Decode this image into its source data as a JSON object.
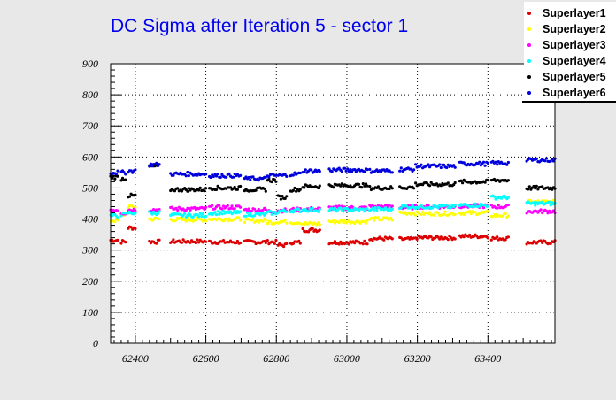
{
  "chart_data": {
    "type": "scatter",
    "title": "DC Sigma after Iteration 5 - sector 1",
    "xlabel": "",
    "ylabel": "",
    "xlim": [
      62330,
      63590
    ],
    "ylim": [
      0,
      900
    ],
    "xticks": [
      62400,
      62600,
      62800,
      63000,
      63200,
      63400
    ],
    "yticks": [
      0,
      100,
      200,
      300,
      400,
      500,
      600,
      700,
      800,
      900
    ],
    "grid": true,
    "legend": "top-right",
    "runs": [
      [
        62330,
        62350
      ],
      [
        62360,
        62375
      ],
      [
        62380,
        62400
      ],
      [
        62440,
        62470
      ],
      [
        62500,
        62600
      ],
      [
        62610,
        62700
      ],
      [
        62710,
        62770
      ],
      [
        62775,
        62800
      ],
      [
        62805,
        62830
      ],
      [
        62840,
        62870
      ],
      [
        62875,
        62925
      ],
      [
        62950,
        63060
      ],
      [
        63065,
        63130
      ],
      [
        63150,
        63190
      ],
      [
        63195,
        63310
      ],
      [
        63320,
        63400
      ],
      [
        63410,
        63460
      ],
      [
        63510,
        63590
      ]
    ],
    "series": [
      {
        "name": "Superlayer1",
        "color": "#dd0000",
        "values": [
          332,
          327,
          372,
          327,
          328,
          326,
          326,
          326,
          316,
          325,
          365,
          325,
          337,
          335,
          340,
          345,
          338,
          325
        ]
      },
      {
        "name": "Superlayer2",
        "color": "#ffff00",
        "values": [
          395,
          415,
          440,
          400,
          398,
          400,
          395,
          390,
          392,
          390,
          385,
          392,
          400,
          420,
          418,
          420,
          412,
          455
        ]
      },
      {
        "name": "Superlayer3",
        "color": "#ff00ff",
        "values": [
          430,
          420,
          430,
          430,
          433,
          438,
          430,
          425,
          428,
          430,
          432,
          436,
          440,
          438,
          440,
          442,
          440,
          425
        ]
      },
      {
        "name": "Superlayer4",
        "color": "#00ffff",
        "values": [
          410,
          415,
          420,
          420,
          412,
          420,
          415,
          420,
          425,
          428,
          430,
          430,
          432,
          440,
          440,
          445,
          470,
          450
        ]
      },
      {
        "name": "Superlayer5",
        "color": "#000000",
        "values": [
          535,
          530,
          475,
          570,
          495,
          500,
          495,
          525,
          470,
          495,
          505,
          508,
          500,
          502,
          512,
          520,
          525,
          500
        ]
      },
      {
        "name": "Superlayer6",
        "color": "#0000dd",
        "values": [
          550,
          550,
          555,
          575,
          545,
          540,
          530,
          540,
          540,
          545,
          555,
          558,
          555,
          560,
          570,
          578,
          580,
          590
        ]
      }
    ]
  }
}
